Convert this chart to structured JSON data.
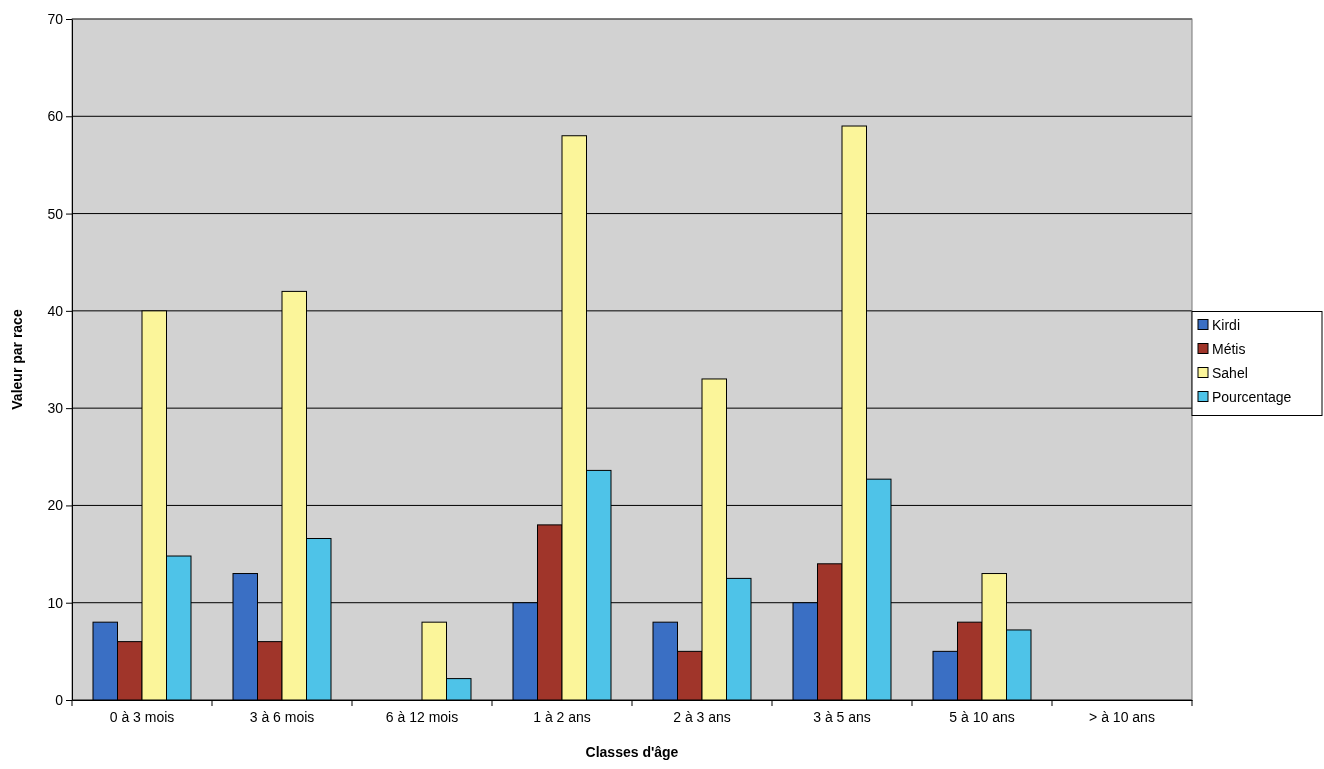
{
  "chart_data": {
    "type": "bar",
    "xlabel": "Classes d'âge",
    "ylabel": "Valeur par race",
    "categories": [
      "0 à 3 mois",
      "3 à 6 mois",
      "6 à 12 mois",
      "1 à 2 ans",
      "2 à 3 ans",
      "3 à 5 ans",
      "5 à 10 ans",
      "> à 10 ans"
    ],
    "series": [
      {
        "name": "Kirdi",
        "color": "#3a6fc4",
        "values": [
          8,
          13,
          0,
          10,
          8,
          10,
          5,
          0
        ]
      },
      {
        "name": "Métis",
        "color": "#a0352a",
        "values": [
          6,
          6,
          0,
          18,
          5,
          14,
          8,
          0
        ]
      },
      {
        "name": "Sahel",
        "color": "#fbf59a",
        "values": [
          40,
          42,
          8,
          58,
          33,
          59,
          13,
          0
        ]
      },
      {
        "name": "Pourcentage",
        "color": "#4ec3e8",
        "values": [
          14.8,
          16.6,
          2.2,
          23.6,
          12.5,
          22.7,
          7.2,
          0
        ]
      }
    ],
    "ylim": [
      0,
      70
    ],
    "yticks": [
      0,
      10,
      20,
      30,
      40,
      50,
      60,
      70
    ],
    "grid": "y",
    "legend": "right"
  }
}
